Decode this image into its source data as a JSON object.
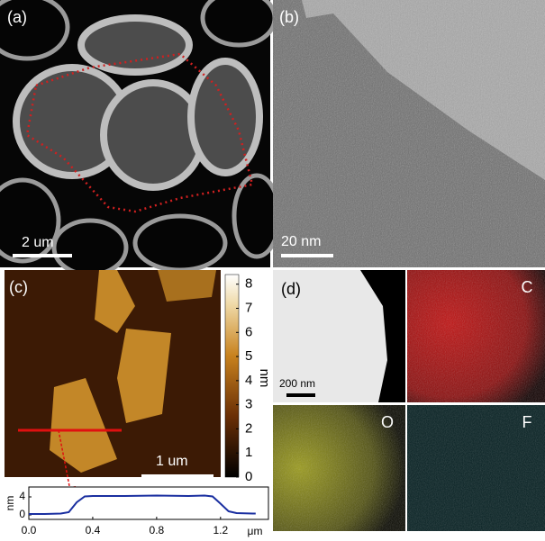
{
  "panels": [
    {
      "label": "(a)",
      "scale_bar": "2 um"
    },
    {
      "label": "(b)",
      "scale_bar": "20 nm"
    },
    {
      "label": "(c)",
      "scale_bar": "1 um"
    },
    {
      "label": "(d)",
      "scale_bar": "200 nm",
      "maps": [
        "C",
        "O",
        "F"
      ]
    }
  ],
  "colorbar": {
    "unit": "nm",
    "lim": [
      0,
      8.4
    ],
    "ticks": [
      0,
      1,
      2,
      3,
      4,
      5,
      6,
      7,
      8
    ]
  },
  "profile": {
    "type": "line",
    "color": "#1a2fa0",
    "x": [
      0,
      0.1,
      0.2,
      0.25,
      0.3,
      0.35,
      0.4,
      0.6,
      0.8,
      1.0,
      1.1,
      1.15,
      1.2,
      1.25,
      1.3,
      1.4,
      1.42
    ],
    "values": [
      0.2,
      0.2,
      0.3,
      0.6,
      2.8,
      4.1,
      4.2,
      4.2,
      4.3,
      4.2,
      4.3,
      4.1,
      2.5,
      0.8,
      0.4,
      0.3,
      0.3
    ],
    "xlim": [
      0,
      1.5
    ],
    "xticks": [
      {
        "value": 0,
        "label": "0.0"
      },
      0.4,
      0.8,
      1.2
    ],
    "ylim": [
      -1,
      6.2
    ],
    "yticks": [
      0,
      4
    ],
    "x_unit": "μm",
    "y_unit": "nm"
  }
}
